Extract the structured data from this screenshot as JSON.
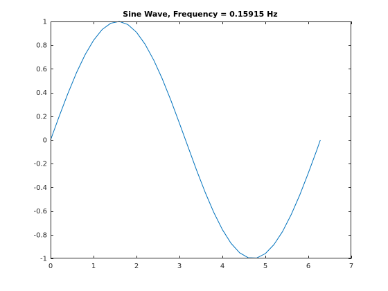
{
  "chart_data": {
    "type": "line",
    "title": "Sine Wave, Frequency = 0.15915 Hz",
    "xlabel": "",
    "ylabel": "",
    "xlim": [
      0,
      7
    ],
    "ylim": [
      -1,
      1
    ],
    "xticks": [
      0,
      1,
      2,
      3,
      4,
      5,
      6,
      7
    ],
    "yticks": [
      -1,
      -0.8,
      -0.6,
      -0.4,
      -0.2,
      0,
      0.2,
      0.4,
      0.6,
      0.8,
      1
    ],
    "xtick_labels": [
      "0",
      "1",
      "2",
      "3",
      "4",
      "5",
      "6",
      "7"
    ],
    "ytick_labels": [
      "-1",
      "-0.8",
      "-0.6",
      "-0.4",
      "-0.2",
      "0",
      "0.2",
      "0.4",
      "0.6",
      "0.8",
      "1"
    ],
    "grid": false,
    "box": true,
    "series": [
      {
        "color": "#0072bd",
        "x": [
          0,
          0.2,
          0.4,
          0.6,
          0.8,
          1.0,
          1.2,
          1.4,
          1.6,
          1.8,
          2.0,
          2.2,
          2.4,
          2.6,
          2.8,
          3.0,
          3.2,
          3.4,
          3.6,
          3.8,
          4.0,
          4.2,
          4.4,
          4.6,
          4.8,
          5.0,
          5.2,
          5.4,
          5.6,
          5.8,
          6.0,
          6.2,
          6.28
        ],
        "y": [
          0,
          0.199,
          0.389,
          0.565,
          0.717,
          0.841,
          0.932,
          0.985,
          1.0,
          0.974,
          0.909,
          0.808,
          0.675,
          0.516,
          0.335,
          0.141,
          -0.058,
          -0.256,
          -0.443,
          -0.612,
          -0.757,
          -0.872,
          -0.952,
          -0.994,
          -0.996,
          -0.959,
          -0.883,
          -0.773,
          -0.631,
          -0.465,
          -0.279,
          -0.083,
          0
        ]
      }
    ]
  }
}
